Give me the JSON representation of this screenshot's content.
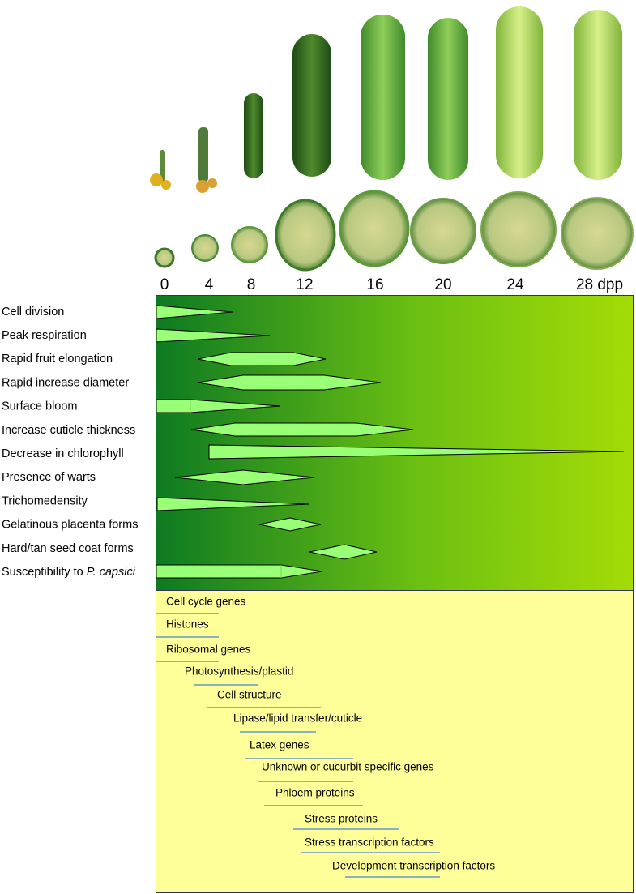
{
  "days": [
    "0",
    "4",
    "8",
    "12",
    "16",
    "20",
    "24",
    "28 dpp"
  ],
  "traits": [
    "Cell division",
    "Peak respiration",
    "Rapid fruit elongation",
    "Rapid increase diameter",
    "Surface bloom",
    "Increase cuticle thickness",
    "Decrease in chlorophyll",
    "Presence of warts",
    "Trichomedensity",
    "Gelatinous placenta forms",
    "Hard/tan seed coat forms",
    {
      "text": "Susceptibility to",
      "species": "P. capsici"
    }
  ],
  "genes": [
    "Cell cycle genes",
    "Histones",
    "Ribosomal genes",
    "Photosynthesis/plastid",
    "Cell structure",
    "Lipase/lipid transfer/cuticle",
    "Latex genes",
    "Unknown or cucurbit specific genes",
    "Phloem proteins",
    "Stress proteins",
    "Stress transcription factors",
    "Development transcription factors"
  ]
}
